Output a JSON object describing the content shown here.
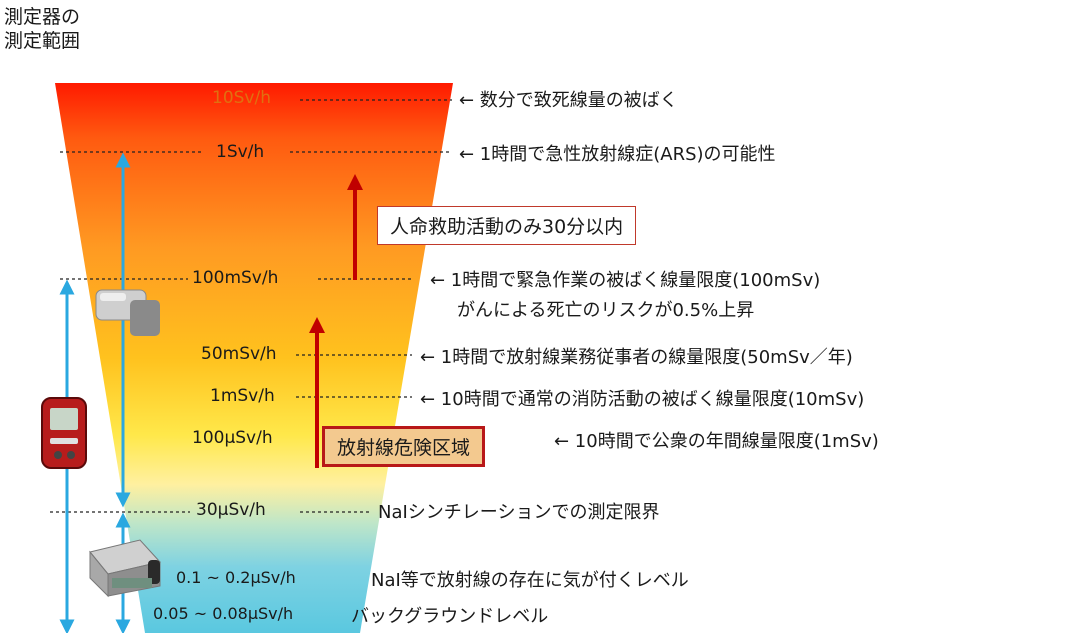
{
  "header": {
    "line1": "測定器の",
    "line2": "測定範囲"
  },
  "levels": [
    {
      "label": "10Sv/h",
      "note": "← 数分で致死線量の被ばく"
    },
    {
      "label": "1Sv/h",
      "note": "← 1時間で急性放射線症(ARS)の可能性"
    },
    {
      "label": "100mSv/h",
      "note": "← 1時間で緊急作業の被ばく線量限度(100mSv)",
      "note2": "がんによる死亡のリスクが0.5%上昇"
    },
    {
      "label": "50mSv/h",
      "note": "← 1時間で放射線業務従事者の線量限度(50mSv／年)"
    },
    {
      "label": "1mSv/h",
      "note": "← 10時間で通常の消防活動の被ばく線量限度(10mSv)"
    },
    {
      "label": "100µSv/h",
      "note": "← 10時間で公衆の年間線量限度(1mSv)"
    },
    {
      "label": "30µSv/h",
      "note": "NaIシンチレーションでの測定限界"
    },
    {
      "label": "0.1 ~ 0.2µSv/h",
      "note": "NaI等で放射線の存在に気が付くレベル"
    },
    {
      "label": "0.05 ~ 0.08µSv/h",
      "note": "バックグラウンドレベル"
    }
  ],
  "callouts": {
    "rescue": "人命救助活動のみ30分以内",
    "danger_zone": "放射線危険区域"
  },
  "colors": {
    "top": "#ff1a00",
    "orange": "#ff8a1c",
    "yellow": "#ffd21f",
    "light_yellow": "#fff27a",
    "cyan": "#5ac8e0",
    "blue_arrow": "#2aa8e0",
    "red_arrow": "#c00000",
    "danger_fill": "#f3c98f",
    "danger_border": "#b81818"
  }
}
